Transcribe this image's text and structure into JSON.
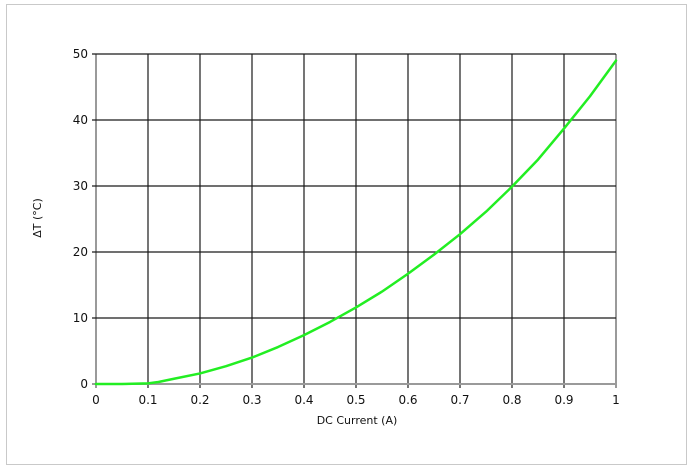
{
  "chart_data": {
    "type": "line",
    "title": "",
    "xlabel": "DC Current (A)",
    "ylabel": "ΔT (°C)",
    "xlim": [
      0,
      1
    ],
    "ylim": [
      0,
      50
    ],
    "grid": true,
    "x_ticks": [
      "0",
      "0.1",
      "0.2",
      "0.3",
      "0.4",
      "0.5",
      "0.6",
      "0.7",
      "0.8",
      "0.9",
      "1"
    ],
    "y_ticks": [
      "0",
      "10",
      "20",
      "30",
      "40",
      "50"
    ],
    "series": [
      {
        "color": "#22ee22",
        "x": [
          0,
          0.05,
          0.1,
          0.12,
          0.15,
          0.2,
          0.25,
          0.3,
          0.35,
          0.4,
          0.45,
          0.5,
          0.55,
          0.6,
          0.65,
          0.7,
          0.75,
          0.8,
          0.85,
          0.9,
          0.95,
          1.0
        ],
        "y": [
          0,
          0,
          0.1,
          0.3,
          0.8,
          1.6,
          2.7,
          4.0,
          5.6,
          7.4,
          9.4,
          11.6,
          14.0,
          16.7,
          19.6,
          22.7,
          26.1,
          29.9,
          34.0,
          38.7,
          43.6,
          49.0
        ]
      }
    ]
  }
}
